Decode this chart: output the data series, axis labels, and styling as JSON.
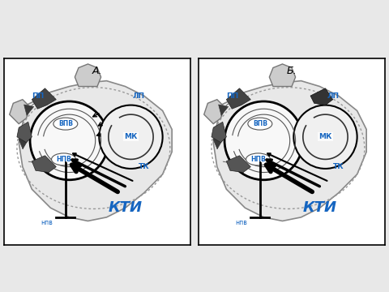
{
  "title_A": "А.",
  "title_B": "Б.",
  "label_PP": "ПП",
  "label_LP": "ЛП",
  "label_VPV": "ВПВ",
  "label_NPV": "НПВ",
  "label_MK": "МК",
  "label_TK": "ТК",
  "label_KTI": "КТИ",
  "label_npv_bottom": "нпв",
  "blue": "#1565C0",
  "red": "#CC2200",
  "dark": "#111111",
  "gray_arrow": "#444444",
  "heart_gray": "#cccccc",
  "heart_light": "#e8e8e8",
  "heart_white": "#f5f5f5",
  "panel_bg": "#ffffff",
  "fig_bg": "#e8e8e8"
}
